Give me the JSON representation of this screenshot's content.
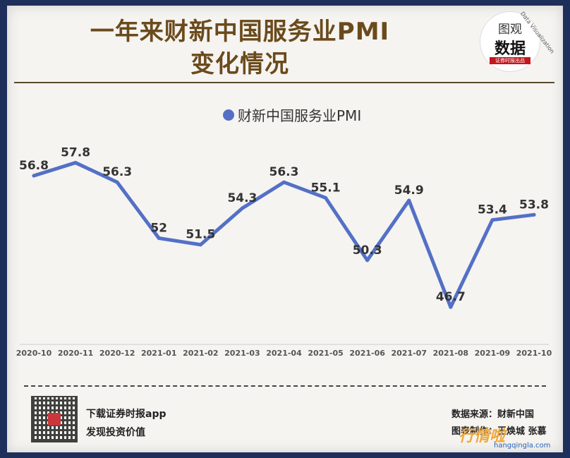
{
  "title_line1": "一年来财新中国服务业PMI",
  "title_line2": "变化情况",
  "logo": {
    "line1": "图观",
    "line2": "数据",
    "badge": "证券时报出品",
    "arc_text": "Data Visualization"
  },
  "footer": {
    "app_line1": "下载证券时报app",
    "app_line2": "发现投资价值",
    "source": "数据来源：财新中国",
    "maker": "图表制作：王焕城 张慕"
  },
  "watermark": {
    "text": "行情啦",
    "url": "hangqingla.com"
  },
  "chart_data": {
    "type": "line",
    "categories": [
      "2020-10",
      "2020-11",
      "2020-12",
      "2021-01",
      "2021-02",
      "2021-03",
      "2021-04",
      "2021-05",
      "2021-06",
      "2021-07",
      "2021-08",
      "2021-09",
      "2021-10"
    ],
    "series": [
      {
        "name": "财新中国服务业PMI",
        "values": [
          56.8,
          57.8,
          56.3,
          52,
          51.5,
          54.3,
          56.3,
          55.1,
          50.3,
          54.9,
          46.7,
          53.4,
          53.8
        ]
      }
    ],
    "data_labels": [
      "56.8",
      "57.8",
      "56.3",
      "52",
      "51.5",
      "54.3",
      "56.3",
      "55.1",
      "50.3",
      "54.9",
      "46.7",
      "53.4",
      "53.8"
    ],
    "ylim": [
      44,
      60
    ],
    "color": "#5470c6",
    "legend": "top-center"
  }
}
